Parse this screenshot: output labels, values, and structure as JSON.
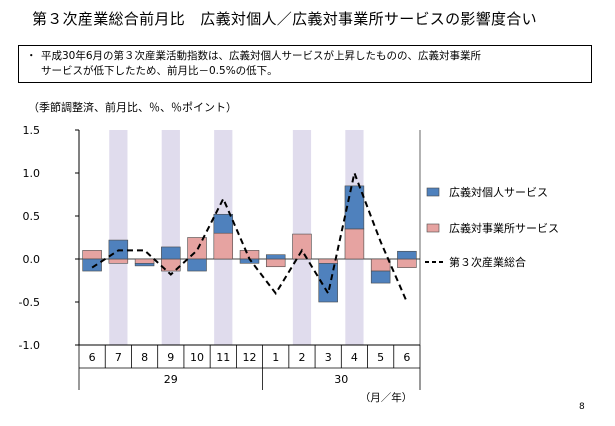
{
  "title": "第３次産業総合前月比　広義対個人／広義対事業所サービスの影響度合い",
  "summary": {
    "bullet": "・",
    "line1": "平成30年6月の第３次産業活動指数は、広義対個人サービスが上昇したものの、広義対事業所",
    "line2": "サービスが低下したため、前月比－0.5%の低下。"
  },
  "page_number": "8",
  "colors": {
    "personal": "#4f81bd",
    "business": "#e6a3a1",
    "shade": "#e0dced",
    "line": "#000000"
  },
  "chart_data": {
    "type": "bar",
    "stacked": true,
    "unit_note": "（季節調整済、前月比、％、％ポイント）",
    "ylim": [
      -1.0,
      1.5
    ],
    "yticks": [
      "1.5",
      "1.0",
      "0.5",
      "0.0",
      "-0.5",
      "-1.0"
    ],
    "ytick_values": [
      1.5,
      1.0,
      0.5,
      0.0,
      -0.5,
      -1.0
    ],
    "categories": [
      "6",
      "7",
      "8",
      "9",
      "10",
      "11",
      "12",
      "1",
      "2",
      "3",
      "4",
      "5",
      "6"
    ],
    "year_groups": [
      {
        "label": "29",
        "start": 0,
        "end": 6
      },
      {
        "label": "30",
        "start": 7,
        "end": 12
      }
    ],
    "axis_unit": "（月／年）",
    "shaded_categories": [
      1,
      3,
      5,
      8,
      10
    ],
    "series": [
      {
        "name": "広義対個人サービス",
        "kind": "bar",
        "values": [
          -0.14,
          0.22,
          -0.03,
          0.14,
          -0.14,
          0.22,
          -0.05,
          0.05,
          0.0,
          -0.45,
          0.5,
          -0.14,
          0.09
        ]
      },
      {
        "name": "広義対事業所サービス",
        "kind": "bar",
        "values": [
          0.1,
          -0.05,
          -0.05,
          -0.14,
          0.25,
          0.3,
          0.1,
          -0.09,
          0.29,
          -0.05,
          0.35,
          -0.14,
          -0.1
        ]
      },
      {
        "name": "第３次産業総合",
        "kind": "line",
        "values": [
          -0.1,
          0.1,
          0.1,
          -0.18,
          0.1,
          0.7,
          0.0,
          -0.4,
          0.1,
          -0.4,
          1.0,
          0.2,
          -0.5
        ]
      }
    ]
  }
}
